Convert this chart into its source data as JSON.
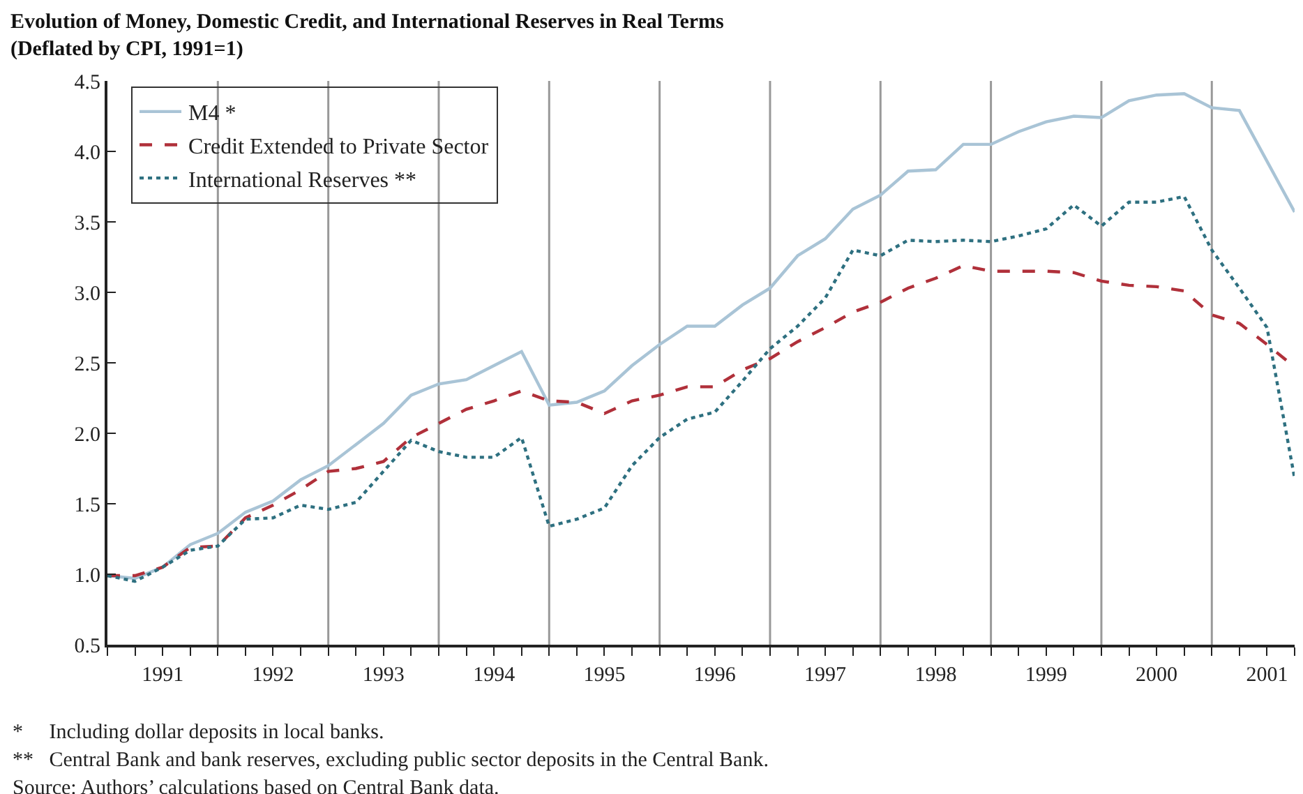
{
  "chart_data": {
    "type": "line",
    "title": "Evolution of Money, Domestic Credit, and International Reserves in Real Terms",
    "subtitle": "(Deflated by CPI, 1991=1)",
    "x": [
      1991,
      1991.25,
      1991.5,
      1991.75,
      1992,
      1992.25,
      1992.5,
      1992.75,
      1993,
      1993.25,
      1993.5,
      1993.75,
      1994,
      1994.25,
      1994.5,
      1994.75,
      1995,
      1995.25,
      1995.5,
      1995.75,
      1996,
      1996.25,
      1996.5,
      1996.75,
      1997,
      1997.25,
      1997.5,
      1997.75,
      1998,
      1998.25,
      1998.5,
      1998.75,
      1999,
      1999.25,
      1999.5,
      1999.75,
      2000,
      2000.25,
      2000.5,
      2000.75,
      2001,
      2001.25,
      2001.5,
      2001.75
    ],
    "series": [
      {
        "name": "M4 *",
        "color": "#a9c4d6",
        "line_style": "solid",
        "values": [
          0.99,
          0.97,
          1.05,
          1.21,
          1.29,
          1.44,
          1.52,
          1.67,
          1.77,
          1.92,
          2.07,
          2.27,
          2.35,
          2.38,
          2.48,
          2.58,
          2.2,
          2.22,
          2.3,
          2.48,
          2.63,
          2.76,
          2.76,
          2.91,
          3.03,
          3.26,
          3.38,
          3.59,
          3.69,
          3.86,
          3.87,
          4.05,
          4.05,
          4.14,
          4.21,
          4.25,
          4.24,
          4.36,
          4.4,
          4.41,
          4.31,
          4.29,
          3.93,
          3.57
        ]
      },
      {
        "name": "Credit Extended to Private Sector",
        "color": "#b0303a",
        "line_style": "dashed",
        "values": [
          0.99,
          0.99,
          1.05,
          1.19,
          1.2,
          1.4,
          1.49,
          1.6,
          1.73,
          1.75,
          1.8,
          1.97,
          2.07,
          2.17,
          2.23,
          2.3,
          2.23,
          2.22,
          2.14,
          2.23,
          2.27,
          2.33,
          2.33,
          2.45,
          2.53,
          2.65,
          2.75,
          2.86,
          2.93,
          3.03,
          3.1,
          3.19,
          3.15,
          3.15,
          3.15,
          3.14,
          3.08,
          3.05,
          3.04,
          3.01,
          2.84,
          2.78,
          2.63,
          2.47
        ]
      },
      {
        "name": "International Reserves **",
        "color": "#2e7080",
        "line_style": "dotted",
        "values": [
          0.99,
          0.95,
          1.05,
          1.17,
          1.2,
          1.39,
          1.4,
          1.49,
          1.46,
          1.51,
          1.73,
          1.95,
          1.87,
          1.83,
          1.83,
          1.97,
          1.34,
          1.39,
          1.47,
          1.77,
          1.97,
          2.1,
          2.15,
          2.37,
          2.6,
          2.76,
          2.96,
          3.3,
          3.26,
          3.37,
          3.36,
          3.37,
          3.36,
          3.4,
          3.45,
          3.62,
          3.47,
          3.64,
          3.64,
          3.68,
          3.3,
          3.03,
          2.75,
          1.68
        ]
      }
    ],
    "xlim": [
      1991,
      2001.75
    ],
    "xticks": [
      {
        "value": 1991,
        "label": null
      },
      {
        "value": 1991.25,
        "label": null
      },
      {
        "value": 1991.5,
        "label": "1991"
      },
      {
        "value": 1991.75,
        "label": null
      },
      {
        "value": 1992,
        "label": null
      },
      {
        "value": 1992.25,
        "label": null
      },
      {
        "value": 1992.5,
        "label": "1992"
      },
      {
        "value": 1992.75,
        "label": null
      },
      {
        "value": 1993,
        "label": null
      },
      {
        "value": 1993.25,
        "label": null
      },
      {
        "value": 1993.5,
        "label": "1993"
      },
      {
        "value": 1993.75,
        "label": null
      },
      {
        "value": 1994,
        "label": null
      },
      {
        "value": 1994.25,
        "label": null
      },
      {
        "value": 1994.5,
        "label": "1994"
      },
      {
        "value": 1994.75,
        "label": null
      },
      {
        "value": 1995,
        "label": null
      },
      {
        "value": 1995.25,
        "label": null
      },
      {
        "value": 1995.5,
        "label": "1995"
      },
      {
        "value": 1995.75,
        "label": null
      },
      {
        "value": 1996,
        "label": null
      },
      {
        "value": 1996.25,
        "label": null
      },
      {
        "value": 1996.5,
        "label": "1996"
      },
      {
        "value": 1996.75,
        "label": null
      },
      {
        "value": 1997,
        "label": null
      },
      {
        "value": 1997.25,
        "label": null
      },
      {
        "value": 1997.5,
        "label": "1997"
      },
      {
        "value": 1997.75,
        "label": null
      },
      {
        "value": 1998,
        "label": null
      },
      {
        "value": 1998.25,
        "label": null
      },
      {
        "value": 1998.5,
        "label": "1998"
      },
      {
        "value": 1998.75,
        "label": null
      },
      {
        "value": 1999,
        "label": null
      },
      {
        "value": 1999.25,
        "label": null
      },
      {
        "value": 1999.5,
        "label": "1999"
      },
      {
        "value": 1999.75,
        "label": null
      },
      {
        "value": 2000,
        "label": null
      },
      {
        "value": 2000.25,
        "label": null
      },
      {
        "value": 2000.5,
        "label": "2000"
      },
      {
        "value": 2000.75,
        "label": null
      },
      {
        "value": 2001,
        "label": null
      },
      {
        "value": 2001.25,
        "label": null
      },
      {
        "value": 2001.5,
        "label": "2001"
      },
      {
        "value": 2001.75,
        "label": null
      }
    ],
    "ylim": [
      0.5,
      4.5
    ],
    "yticks": [
      0.5,
      {
        "value": 1,
        "label": "1.0"
      },
      1.5,
      {
        "value": 2,
        "label": "2.0"
      },
      2.5,
      {
        "value": 3,
        "label": "3.0"
      },
      3.5,
      {
        "value": 4,
        "label": "4.0"
      },
      4.5
    ],
    "ref_lines": [
      {
        "axis": "x",
        "value": 1992,
        "color": "#999999"
      },
      {
        "axis": "x",
        "value": 1993,
        "color": "#999999"
      },
      {
        "axis": "x",
        "value": 1994,
        "color": "#999999"
      },
      {
        "axis": "x",
        "value": 1995,
        "color": "#999999"
      },
      {
        "axis": "x",
        "value": 1996,
        "color": "#999999"
      },
      {
        "axis": "x",
        "value": 1997,
        "color": "#999999"
      },
      {
        "axis": "x",
        "value": 1998,
        "color": "#999999"
      },
      {
        "axis": "x",
        "value": 1999,
        "color": "#999999"
      },
      {
        "axis": "x",
        "value": 2000,
        "color": "#999999"
      },
      {
        "axis": "x",
        "value": 2001,
        "color": "#999999"
      }
    ],
    "annotations": [
      "*     Including dollar deposits in local banks.",
      "**   Central Bank and bank reserves, excluding public sector deposits in the Central Bank.",
      "Source: Authors’ calculations based on Central Bank data."
    ],
    "legend": "top left",
    "grid": false,
    "marker": "none"
  }
}
